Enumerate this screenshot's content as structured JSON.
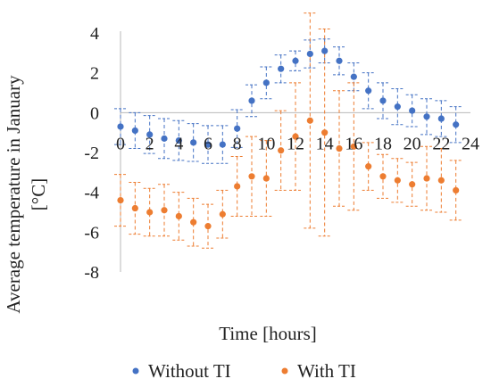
{
  "chart_data": {
    "type": "scatter",
    "title": "",
    "xlabel": "Time [hours]",
    "ylabel_lines": [
      "Average temperature in January",
      "[°C]"
    ],
    "xlim": [
      0,
      24
    ],
    "ylim": [
      -8,
      4
    ],
    "x_ticks": [
      0,
      2,
      4,
      6,
      8,
      10,
      12,
      14,
      16,
      18,
      20,
      22,
      24
    ],
    "y_ticks": [
      4,
      2,
      0,
      -2,
      -4,
      -6,
      -8
    ],
    "x_tick_labels": [
      "0",
      "2",
      "4",
      "6",
      "8",
      "10",
      "12",
      "14",
      "16",
      "18",
      "20",
      "22",
      "24"
    ],
    "y_tick_labels": [
      "4",
      "2",
      "0",
      "-2",
      "-4",
      "-6",
      "-8"
    ],
    "grid": false,
    "legend_position": "bottom",
    "error_bars": "dashed",
    "series": [
      {
        "name": "Without TI",
        "color": "#4472C4",
        "x": [
          0,
          1,
          2,
          3,
          4,
          5,
          6,
          7,
          8,
          9,
          10,
          11,
          12,
          13,
          14,
          15,
          16,
          17,
          18,
          19,
          20,
          21,
          22,
          23
        ],
        "y": [
          -0.7,
          -0.9,
          -1.1,
          -1.3,
          -1.4,
          -1.5,
          -1.6,
          -1.6,
          -0.8,
          0.6,
          1.5,
          2.2,
          2.6,
          2.95,
          3.1,
          2.6,
          1.8,
          1.1,
          0.6,
          0.3,
          0.1,
          -0.2,
          -0.3,
          -0.6
        ],
        "err": [
          0.9,
          0.9,
          0.95,
          1.0,
          1.0,
          0.95,
          0.95,
          0.95,
          0.95,
          0.8,
          0.8,
          0.7,
          0.5,
          0.7,
          0.6,
          0.7,
          0.7,
          0.9,
          0.9,
          0.9,
          0.8,
          0.9,
          0.9,
          0.9
        ]
      },
      {
        "name": "With TI",
        "color": "#ED7D31",
        "x": [
          0,
          1,
          2,
          3,
          4,
          5,
          6,
          7,
          8,
          9,
          10,
          11,
          12,
          13,
          14,
          15,
          16,
          17,
          18,
          19,
          20,
          21,
          22,
          23
        ],
        "y": [
          -4.4,
          -4.8,
          -5.0,
          -4.9,
          -5.2,
          -5.5,
          -5.7,
          -5.1,
          -3.7,
          -3.2,
          -3.3,
          -1.9,
          -1.2,
          -0.4,
          -1.0,
          -1.8,
          -1.7,
          -2.7,
          -3.2,
          -3.4,
          -3.6,
          -3.3,
          -3.4,
          -3.9
        ],
        "err": [
          1.3,
          1.3,
          1.2,
          1.3,
          1.2,
          1.2,
          1.1,
          1.2,
          1.5,
          2.0,
          1.9,
          2.0,
          2.7,
          5.4,
          5.2,
          2.9,
          3.2,
          1.2,
          1.1,
          1.1,
          1.1,
          1.6,
          1.6,
          1.5
        ]
      }
    ]
  }
}
